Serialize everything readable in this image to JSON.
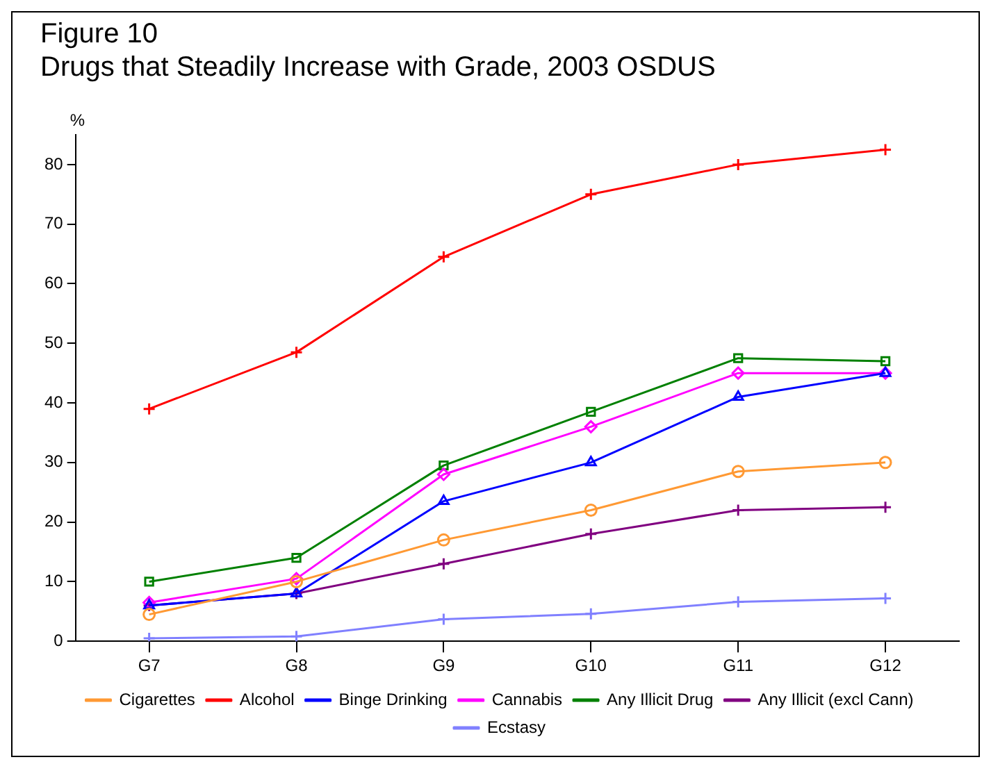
{
  "chart_data": {
    "type": "line",
    "title": "Figure 10",
    "subtitle": "Drugs that Steadily Increase with Grade, 2003 OSDUS",
    "ylabel": "%",
    "categories": [
      "G7",
      "G8",
      "G9",
      "G10",
      "G11",
      "G12"
    ],
    "series": [
      {
        "name": "Cigarettes",
        "color": "#ff9933",
        "marker": "circle",
        "values": [
          4.5,
          10,
          17,
          22,
          28.5,
          30
        ]
      },
      {
        "name": "Alcohol",
        "color": "#ff0000",
        "marker": "cross",
        "values": [
          39,
          48.5,
          64.5,
          75,
          80,
          82.5
        ]
      },
      {
        "name": "Binge Drinking",
        "color": "#0000ff",
        "marker": "triangle",
        "values": [
          6,
          8,
          23.5,
          30,
          41,
          45
        ]
      },
      {
        "name": "Cannabis",
        "color": "#ff00ff",
        "marker": "diamond",
        "values": [
          6.5,
          10.5,
          28,
          36,
          45,
          45
        ]
      },
      {
        "name": "Any Illicit Drug",
        "color": "#008000",
        "marker": "square",
        "values": [
          10,
          14,
          29.5,
          38.5,
          47.5,
          47
        ]
      },
      {
        "name": "Any Illicit (excl Cann)",
        "color": "#800080",
        "marker": "cross",
        "values": [
          6,
          8,
          13,
          18,
          22,
          22.5
        ]
      },
      {
        "name": "Ecstasy",
        "color": "#8080ff",
        "marker": "cross",
        "values": [
          0.5,
          0.8,
          3.7,
          4.6,
          6.6,
          7.2
        ]
      }
    ],
    "ylim": [
      0,
      85
    ],
    "yticks": [
      0,
      10,
      20,
      30,
      40,
      50,
      60,
      70,
      80
    ],
    "grid": false,
    "legend": "bottom"
  }
}
